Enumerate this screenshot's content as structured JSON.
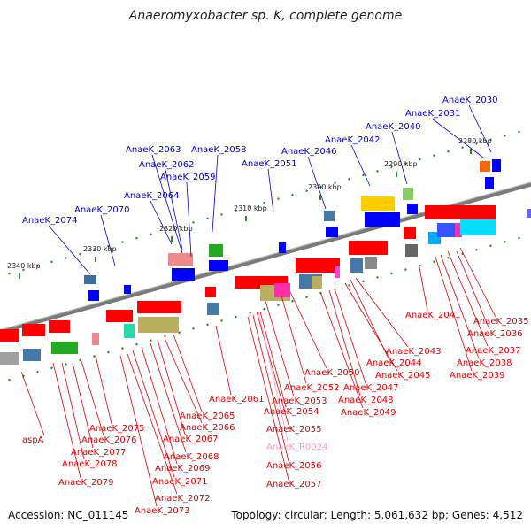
{
  "title": "Anaeromyxobacter sp. K, complete genome",
  "footer": {
    "accession": "Accession: NC_011145",
    "summary": "Topology: circular; Length: 5,061,632 bp; Genes: 4,512"
  },
  "colors": {
    "forward_label": "#0000cc",
    "reverse_label": "#e00000",
    "rna_label": "#ff99cc",
    "backbone": "#7a7a7a",
    "tick": "#228b22",
    "cds_forward": "#0000ff",
    "cds_reverse": "#ff0000"
  },
  "scale_ticks": [
    "2340 kbp",
    "2330 kbp",
    "2320 kbp",
    "2310 kbp",
    "2300 kbp",
    "2290 kbp",
    "2280 kbp"
  ],
  "forward_labels": [
    "AnaeK_2030",
    "AnaeK_2031",
    "AnaeK_2040",
    "AnaeK_2042",
    "AnaeK_2046",
    "AnaeK_2051",
    "AnaeK_2058",
    "AnaeK_2063",
    "AnaeK_2062",
    "AnaeK_2059",
    "AnaeK_2064",
    "AnaeK_2070",
    "AnaeK_2074"
  ],
  "reverse_labels": [
    "AnaeK_2041",
    "AnaeK_2035",
    "AnaeK_2036",
    "AnaeK_2037",
    "AnaeK_2038",
    "AnaeK_2039",
    "AnaeK_2043",
    "AnaeK_2044",
    "AnaeK_2045",
    "AnaeK_2050",
    "AnaeK_2047",
    "AnaeK_2052",
    "AnaeK_2048",
    "AnaeK_2053",
    "AnaeK_2049",
    "AnaeK_2061",
    "AnaeK_2054",
    "AnaeK_2065",
    "AnaeK_2066",
    "AnaeK_2055",
    "AnaeK_2075",
    "AnaeK_2067",
    "AnaeK_2076",
    "AnaeK_2077",
    "aspA",
    "AnaeK_2068",
    "AnaeK_2056",
    "AnaeK_2078",
    "AnaeK_2069",
    "AnaeK_2071",
    "AnaeK_2057",
    "AnaeK_2079",
    "AnaeK_2072",
    "AnaeK_2073"
  ],
  "rna_labels": [
    "AnaeK_R0024"
  ]
}
